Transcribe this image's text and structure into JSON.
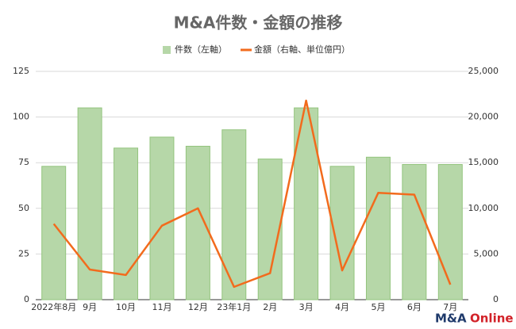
{
  "chart_data": {
    "type": "bar",
    "title": "M&A件数・金額の推移",
    "categories": [
      "2022年8月",
      "9月",
      "10月",
      "11月",
      "12月",
      "23年1月",
      "2月",
      "3月",
      "4月",
      "5月",
      "6月",
      "7月"
    ],
    "series": [
      {
        "name": "件数（左軸）",
        "type": "bar",
        "color": "#b6d7a8",
        "values": [
          73,
          105,
          83,
          89,
          84,
          93,
          77,
          105,
          73,
          78,
          74,
          74
        ]
      },
      {
        "name": "金額（右軸、単位億円）",
        "type": "line",
        "axis": "y2",
        "color": "#f26b1d",
        "values": [
          8300,
          3300,
          2700,
          8100,
          10000,
          1400,
          2900,
          21800,
          3200,
          11700,
          11500,
          1650
        ]
      }
    ],
    "ylim": [
      0,
      125
    ],
    "yticks": [
      0,
      25,
      50,
      75,
      100,
      125
    ],
    "y2lim": [
      0,
      25000
    ],
    "y2ticks": [
      0,
      {
        "value": 5000,
        "label": "5,000"
      },
      {
        "value": 10000,
        "label": "10,000"
      },
      {
        "value": 15000,
        "label": "15,000"
      },
      {
        "value": 20000,
        "label": "20,000"
      },
      {
        "value": 25000,
        "label": "25,000"
      }
    ],
    "grid": true,
    "legend": "top"
  },
  "logo": [
    "M&A",
    "Online"
  ]
}
